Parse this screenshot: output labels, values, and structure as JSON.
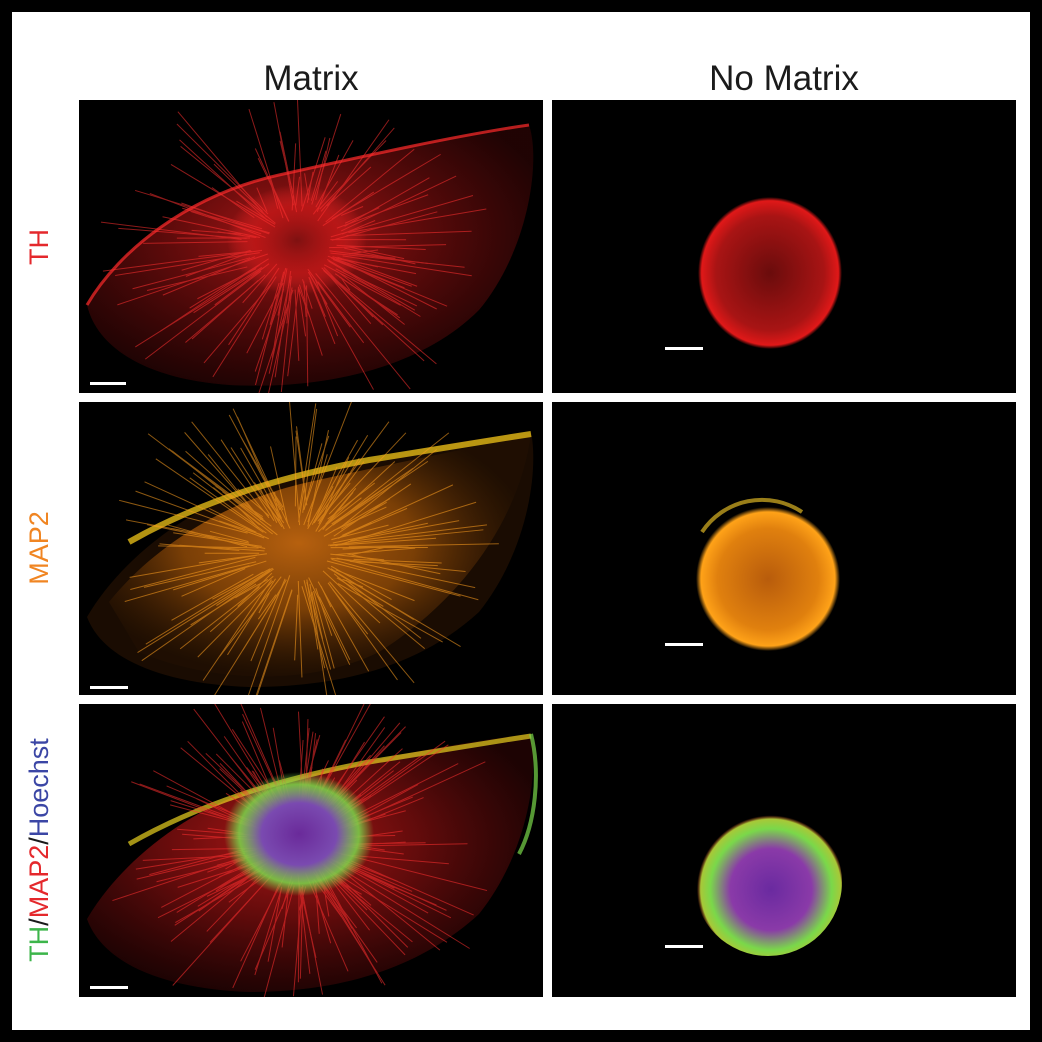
{
  "figure": {
    "column_titles": [
      "Matrix",
      "No Matrix"
    ],
    "rows": [
      {
        "label_parts": [
          {
            "text": "TH",
            "color": "#e4282c"
          }
        ]
      },
      {
        "label_parts": [
          {
            "text": "MAP2",
            "color": "#f08522"
          }
        ]
      },
      {
        "label_parts": [
          {
            "text": "TH",
            "color": "#3cb54a"
          },
          {
            "text": "/",
            "color": "#1a1a1a"
          },
          {
            "text": "MAP2",
            "color": "#e4282c"
          },
          {
            "text": "/",
            "color": "#1a1a1a"
          },
          {
            "text": "Hoechst",
            "color": "#3b46a5"
          }
        ]
      }
    ],
    "panels": [
      {
        "row": "TH",
        "column": "Matrix",
        "staining": "TH",
        "colors": [
          "#ff1a1a"
        ]
      },
      {
        "row": "TH",
        "column": "No Matrix",
        "staining": "TH",
        "colors": [
          "#e01818"
        ]
      },
      {
        "row": "MAP2",
        "column": "Matrix",
        "staining": "MAP2",
        "colors": [
          "#ff9410"
        ]
      },
      {
        "row": "MAP2",
        "column": "No Matrix",
        "staining": "MAP2",
        "colors": [
          "#ff9a14"
        ]
      },
      {
        "row": "TH/MAP2/Hoechst",
        "column": "Matrix",
        "staining": "merge",
        "colors": [
          "#ff2020",
          "#7ad84a",
          "#5a3cc8"
        ]
      },
      {
        "row": "TH/MAP2/Hoechst",
        "column": "No Matrix",
        "staining": "merge",
        "colors": [
          "#7ad84a",
          "#8a3aa8",
          "#ff2020"
        ]
      }
    ]
  }
}
